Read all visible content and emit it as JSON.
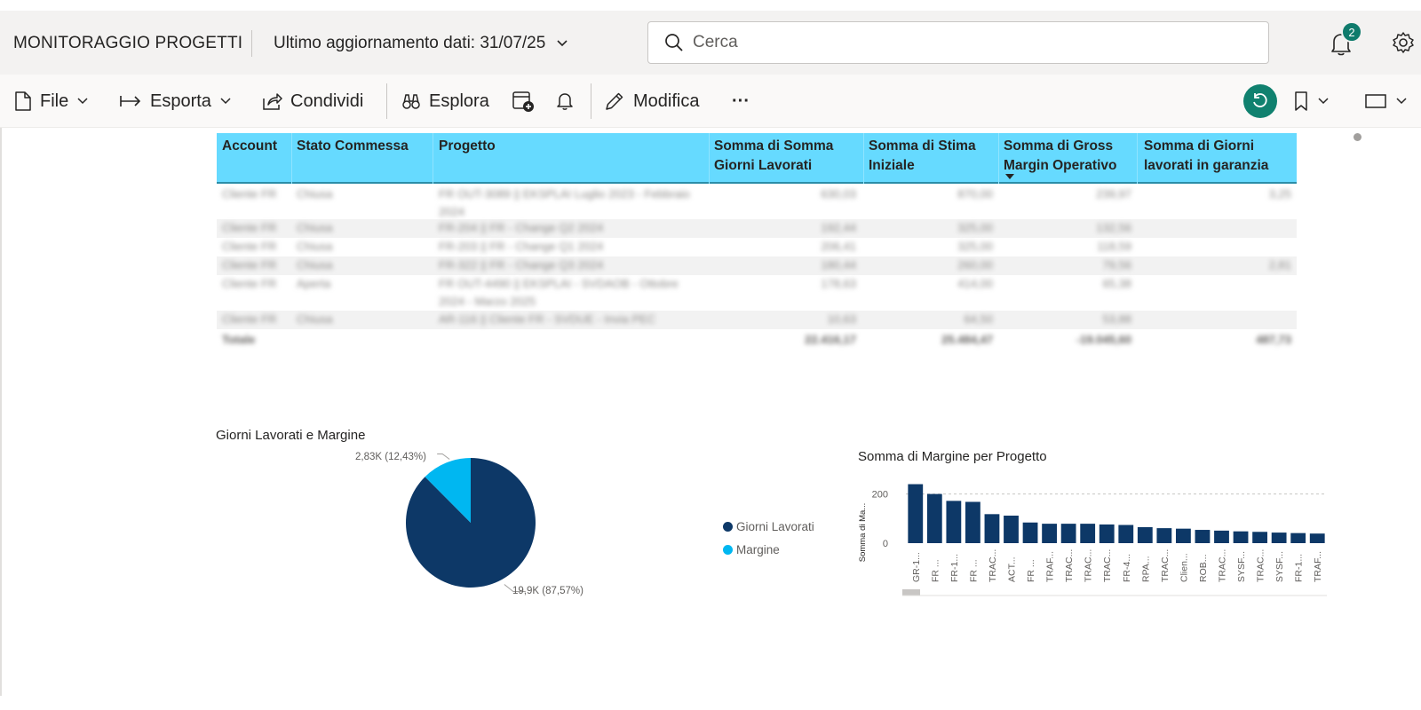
{
  "header": {
    "app_title": "MONITORAGGIO PROGETTI",
    "last_update": "Ultimo aggiornamento dati: 31/07/25",
    "search_placeholder": "Cerca",
    "notification_count": "2",
    "icons": {
      "chevron": "chevron-down-icon",
      "search": "search-icon",
      "bell": "bell-icon",
      "gear": "gear-icon"
    }
  },
  "toolbar": {
    "file_label": "File",
    "export_label": "Esporta",
    "share_label": "Condividi",
    "explore_label": "Esplora",
    "edit_label": "Modifica",
    "more_label": "···",
    "accent_color": "#10816f"
  },
  "table": {
    "header_color": "#66daff",
    "columns": [
      "Account",
      "Stato Commessa",
      "Progetto",
      "Somma di Somma Giorni Lavorati",
      "Somma di Stima Iniziale",
      "Somma di Gross Margin Operativo",
      "Somma di Giorni lavorati in garanzia"
    ],
    "rows": [
      {
        "account": "Cliente FR",
        "stato": "Chiusa",
        "progetto": "FR OUT-3089 || EKSPLAI Luglio 2023 - Febbraio 2024",
        "giorni": "630,03",
        "stima": "870,00",
        "margin": "239,97",
        "garanzia": "3,25"
      },
      {
        "account": "Cliente FR",
        "stato": "Chiusa",
        "progetto": "FR-204 || FR - Change Q2 2024",
        "giorni": "192,44",
        "stima": "325,00",
        "margin": "132,56",
        "garanzia": ""
      },
      {
        "account": "Cliente FR",
        "stato": "Chiusa",
        "progetto": "FR-203 || FR - Change Q1 2024",
        "giorni": "206,41",
        "stima": "325,00",
        "margin": "118,59",
        "garanzia": ""
      },
      {
        "account": "Cliente FR",
        "stato": "Chiusa",
        "progetto": "FR-322 || FR - Change Q3 2024",
        "giorni": "180,44",
        "stima": "260,00",
        "margin": "79,56",
        "garanzia": "2,81"
      },
      {
        "account": "Cliente FR",
        "stato": "Aperta",
        "progetto": "FR OUT-4490 || EKSPLAI - SVDAOB - Ottobre 2024 - Marzo 2025",
        "giorni": "178,63",
        "stima": "414,00",
        "margin": "65,38",
        "garanzia": ""
      },
      {
        "account": "Cliente FR",
        "stato": "Chiusa",
        "progetto": "AR-116 || Cliente FR - SVDUE - Invia PEC",
        "giorni": "10,63",
        "stima": "64,50",
        "margin": "53,88",
        "garanzia": ""
      }
    ],
    "total": {
      "label": "Totale",
      "giorni": "22.416,17",
      "stima": "25.484,47",
      "margin": "-19.045,60",
      "garanzia": "487,73"
    }
  },
  "pie_chart": {
    "title": "Giorni Lavorati e Margine",
    "legend": [
      "Giorni Lavorati",
      "Margine"
    ],
    "colors": [
      "#0d3867",
      "#00b7f1"
    ],
    "chart_data": {
      "type": "pie",
      "categories": [
        "Giorni Lavorati",
        "Margine"
      ],
      "values": [
        19.9,
        2.83
      ],
      "value_labels": [
        "19,9K (87,57%)",
        "2,83K (12,43%)"
      ],
      "percentages": [
        87.57,
        12.43
      ],
      "legend_position": "right"
    }
  },
  "bar_chart": {
    "title": "Somma di Margine per Progetto",
    "ylabel": "Somma di Ma...",
    "color": "#0d3867",
    "chart_data": {
      "type": "bar",
      "categories": [
        "GR-1...",
        "FR ...",
        "FR-1...",
        "FR ...",
        "TRAC...",
        "ACT...",
        "FR ...",
        "TRAF...",
        "TRAC...",
        "TRAC...",
        "TRAC...",
        "FR-4...",
        "RPA...",
        "TRAC...",
        "Clien...",
        "ROB...",
        "TRAC...",
        "SYSF...",
        "TRAC...",
        "SYSF...",
        "FR-1...",
        "TRAF..."
      ],
      "values": [
        240,
        200,
        172,
        168,
        118,
        112,
        84,
        79,
        79,
        79,
        76,
        74,
        65,
        61,
        59,
        54,
        51,
        48,
        46,
        43,
        41,
        39
      ],
      "yticks": [
        "0",
        "200"
      ],
      "ylim": [
        0,
        260
      ],
      "grid": true
    }
  }
}
